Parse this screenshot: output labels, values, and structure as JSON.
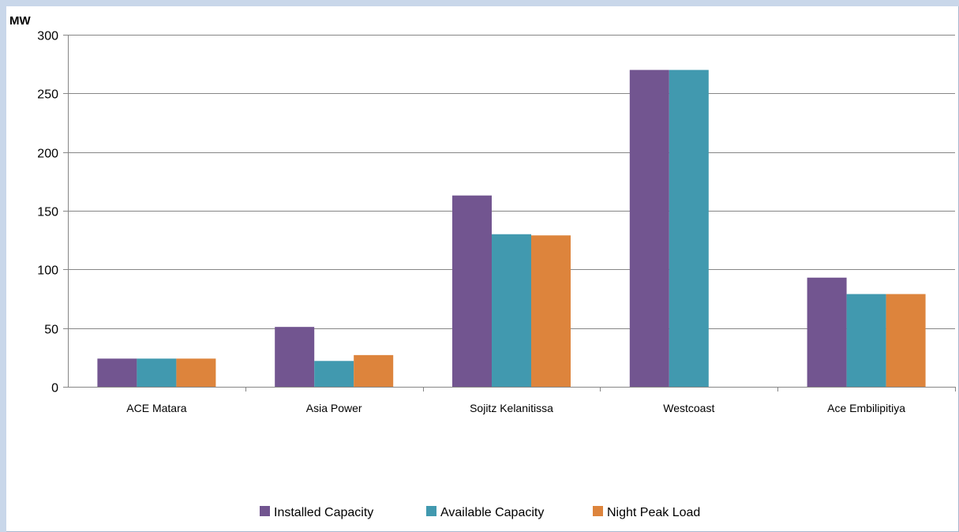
{
  "chart_data": {
    "type": "bar",
    "title": "",
    "xlabel": "",
    "ylabel": "MW",
    "ylim": [
      0,
      300
    ],
    "yticks": [
      0,
      50,
      100,
      150,
      200,
      250,
      300
    ],
    "grid": true,
    "legend_position": "bottom",
    "categories": [
      "ACE Matara",
      "Asia Power",
      "Sojitz Kelanitissa",
      "Westcoast",
      "Ace Embilipitiya"
    ],
    "series": [
      {
        "name": "Installed Capacity",
        "color": "#725590",
        "values": [
          24,
          51,
          163,
          270,
          93
        ]
      },
      {
        "name": "Available Capacity",
        "color": "#4199af",
        "values": [
          24,
          22,
          130,
          270,
          79
        ]
      },
      {
        "name": "Night Peak Load",
        "color": "#dd843c",
        "values": [
          24,
          27,
          129,
          0,
          79
        ]
      }
    ]
  }
}
